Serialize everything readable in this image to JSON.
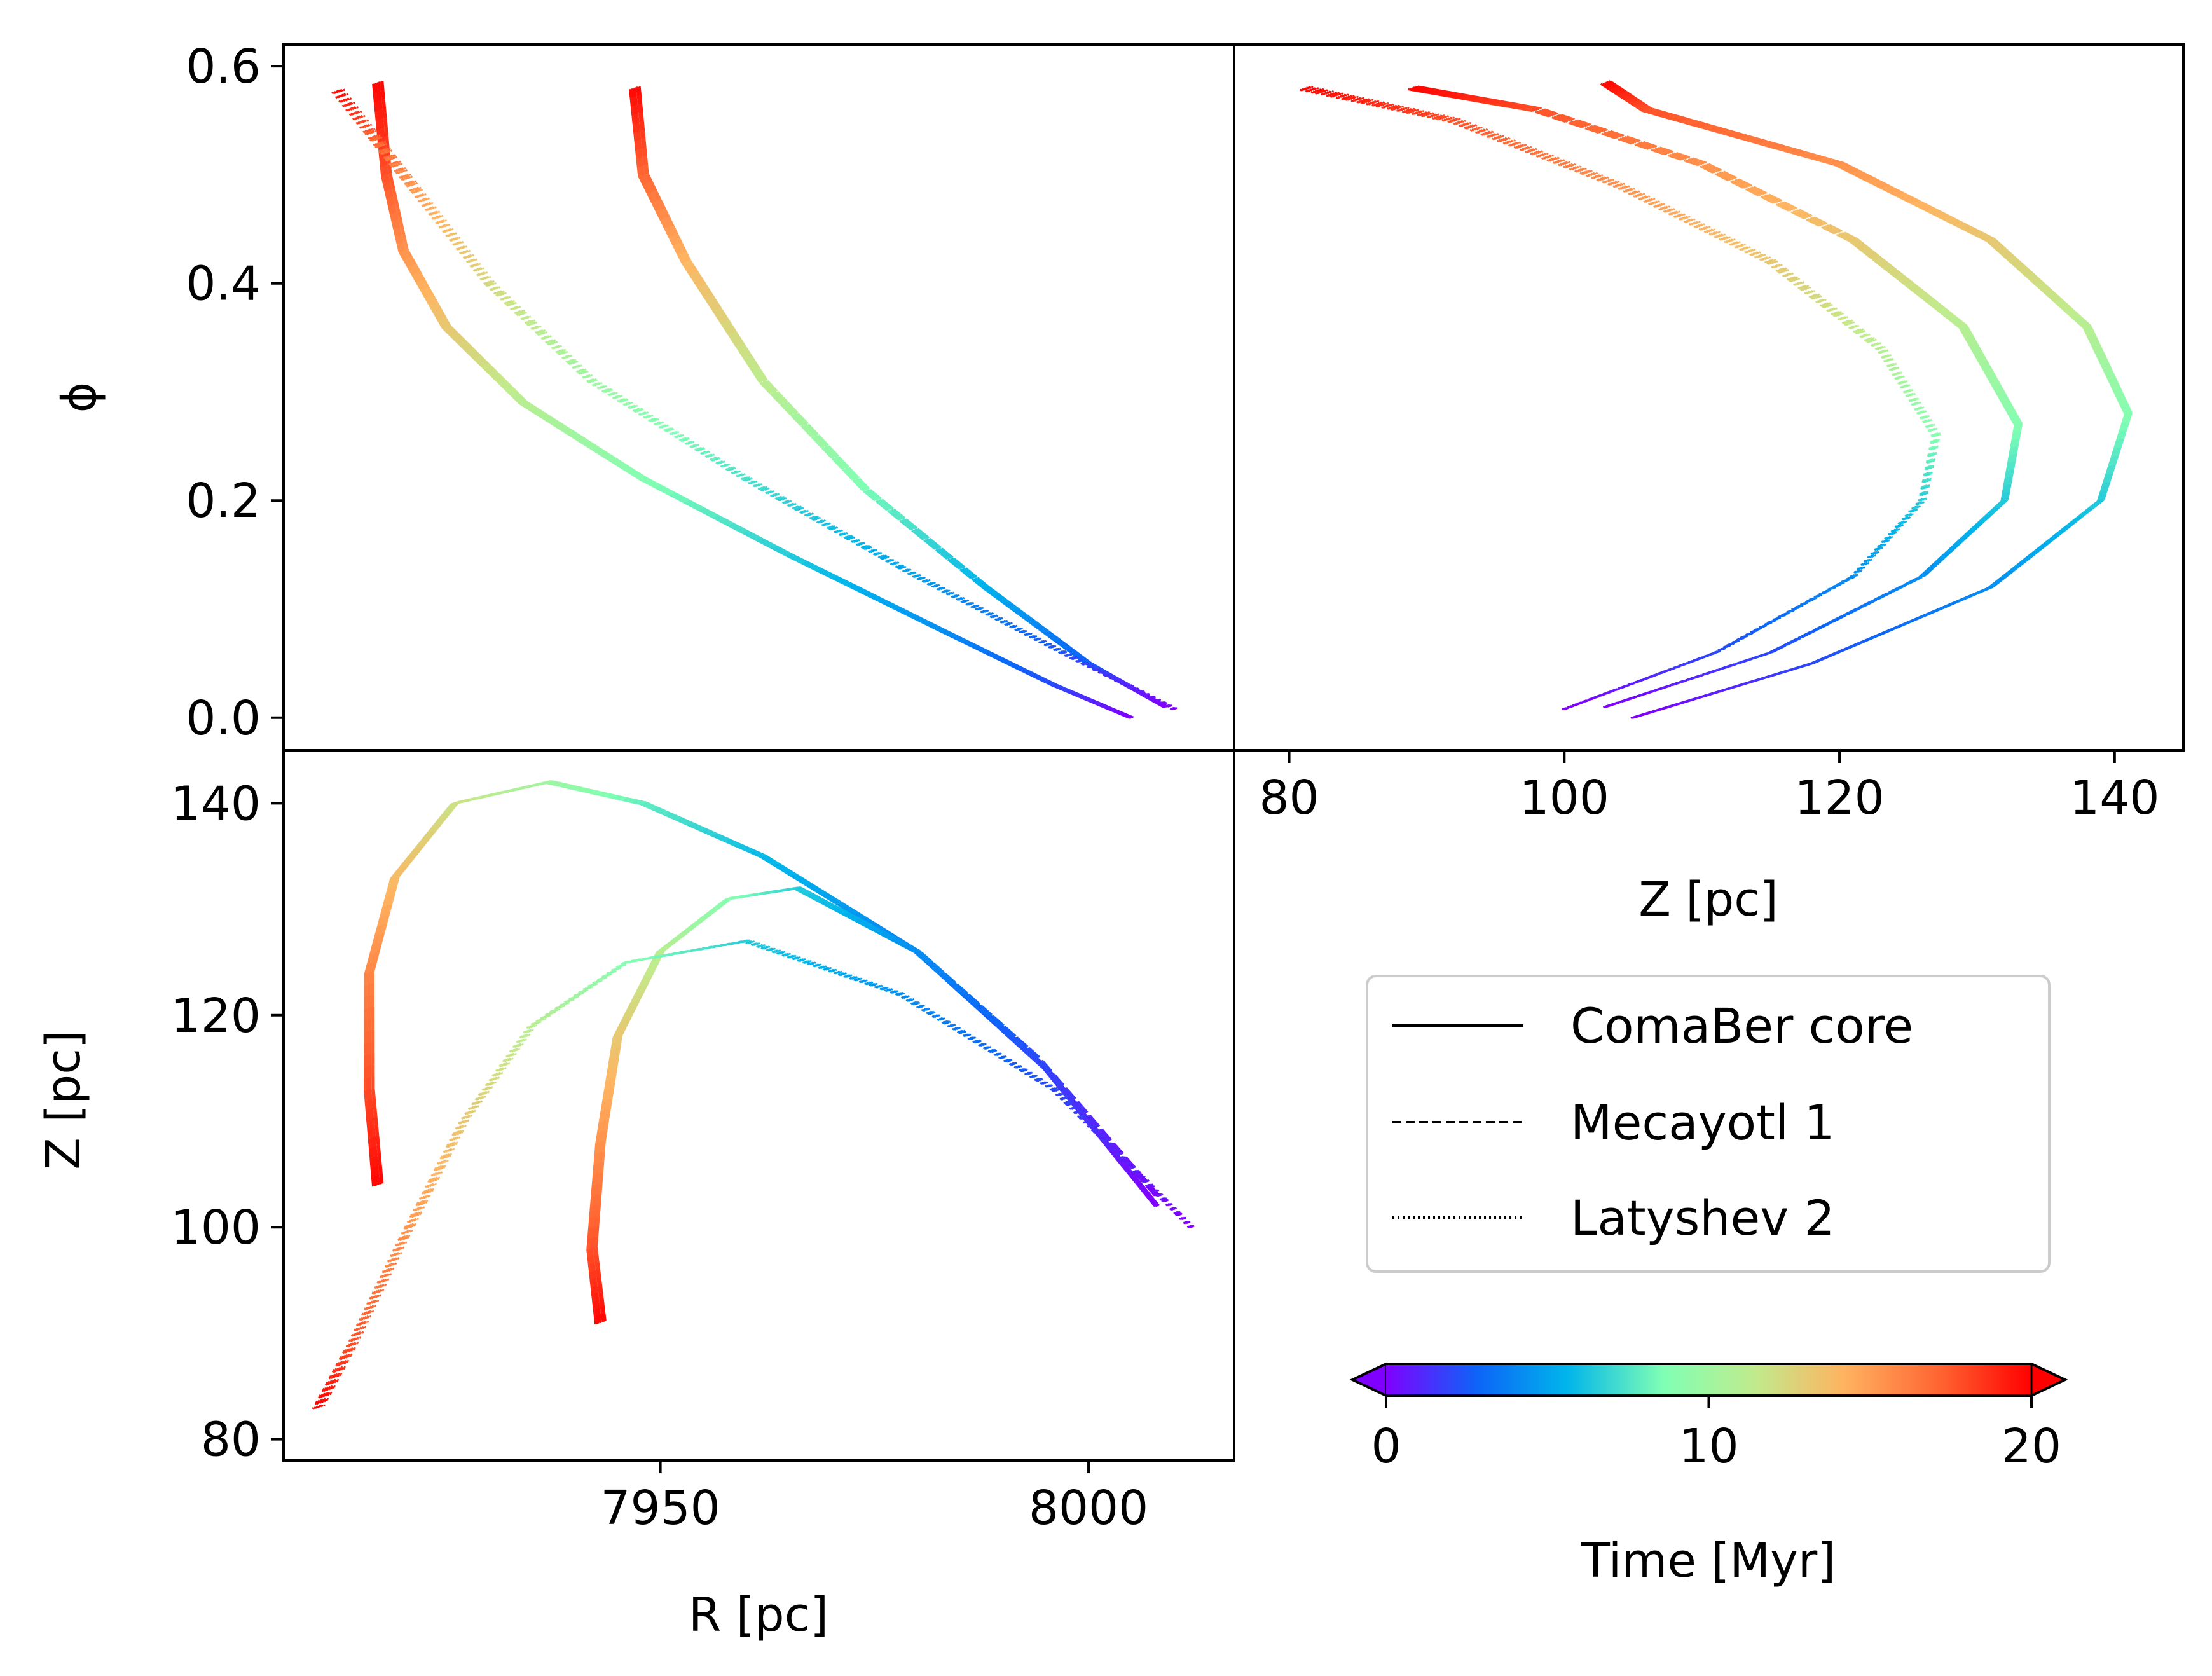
{
  "chart_data": [
    {
      "id": "phi-vs-R",
      "type": "line",
      "panel": "top-left",
      "xlabel": "",
      "ylabel": "ϕ",
      "xlim": [
        7906,
        8017
      ],
      "ylim": [
        -0.03,
        0.62
      ],
      "yticks": [
        "0.0",
        "0.2",
        "0.4",
        "0.6"
      ],
      "ytick_values": [
        0.0,
        0.2,
        0.4,
        0.6
      ],
      "series": [
        {
          "name": "ComaBer core",
          "style": "solid",
          "points": [
            [
              8005,
              0.0
            ],
            [
              7996,
              0.03
            ],
            [
              7983,
              0.08
            ],
            [
              7965,
              0.15
            ],
            [
              7948,
              0.22
            ],
            [
              7934,
              0.29
            ],
            [
              7925,
              0.36
            ],
            [
              7920,
              0.43
            ],
            [
              7918,
              0.5
            ],
            [
              7917,
              0.585
            ]
          ]
        },
        {
          "name": "Mecayotl 1",
          "style": "dashed",
          "points": [
            [
              8009,
              0.01
            ],
            [
              8000,
              0.05
            ],
            [
              7988,
              0.12
            ],
            [
              7974,
              0.21
            ],
            [
              7962,
              0.31
            ],
            [
              7953,
              0.42
            ],
            [
              7948,
              0.5
            ],
            [
              7947,
              0.58
            ]
          ]
        },
        {
          "name": "Latyshev 2",
          "style": "dotted",
          "points": [
            [
              8010,
              0.008
            ],
            [
              7997,
              0.06
            ],
            [
              7980,
              0.13
            ],
            [
              7960,
              0.22
            ],
            [
              7942,
              0.31
            ],
            [
              7930,
              0.4
            ],
            [
              7922,
              0.48
            ],
            [
              7916,
              0.54
            ],
            [
              7912,
              0.58
            ]
          ]
        }
      ]
    },
    {
      "id": "phi-vs-Z",
      "type": "line",
      "panel": "top-right",
      "xlabel": "Z [pc]",
      "ylabel": "",
      "xlim": [
        76,
        145
      ],
      "ylim": [
        -0.03,
        0.62
      ],
      "xticks": [
        "80",
        "100",
        "120",
        "140"
      ],
      "xtick_values": [
        80,
        100,
        120,
        140
      ],
      "series": [
        {
          "name": "ComaBer core",
          "style": "solid",
          "points": [
            [
              105,
              0.0
            ],
            [
              118,
              0.05
            ],
            [
              131,
              0.12
            ],
            [
              139,
              0.2
            ],
            [
              141,
              0.28
            ],
            [
              138,
              0.36
            ],
            [
              131,
              0.44
            ],
            [
              120,
              0.51
            ],
            [
              106,
              0.56
            ],
            [
              103,
              0.585
            ]
          ]
        },
        {
          "name": "Mecayotl 1",
          "style": "dashed",
          "points": [
            [
              103,
              0.01
            ],
            [
              115,
              0.06
            ],
            [
              126,
              0.13
            ],
            [
              132,
              0.2
            ],
            [
              133,
              0.27
            ],
            [
              129,
              0.36
            ],
            [
              121,
              0.44
            ],
            [
              110,
              0.51
            ],
            [
              98,
              0.56
            ],
            [
              89,
              0.58
            ]
          ]
        },
        {
          "name": "Latyshev 2",
          "style": "dotted",
          "points": [
            [
              100,
              0.008
            ],
            [
              111,
              0.06
            ],
            [
              121,
              0.13
            ],
            [
              126,
              0.2
            ],
            [
              127,
              0.26
            ],
            [
              123,
              0.34
            ],
            [
              115,
              0.42
            ],
            [
              104,
              0.49
            ],
            [
              92,
              0.55
            ],
            [
              81,
              0.58
            ]
          ]
        }
      ]
    },
    {
      "id": "Z-vs-R",
      "type": "line",
      "panel": "bottom-left",
      "xlabel": "R [pc]",
      "ylabel": "Z [pc]",
      "xlim": [
        7906,
        8017
      ],
      "ylim": [
        78,
        145
      ],
      "xticks": [
        "7950",
        "8000"
      ],
      "xtick_values": [
        7950,
        8000
      ],
      "yticks": [
        "80",
        "100",
        "120",
        "140"
      ],
      "ytick_values": [
        80,
        100,
        120,
        140
      ],
      "series": [
        {
          "name": "ComaBer core",
          "style": "solid",
          "points": [
            [
              8008,
              102
            ],
            [
              7995,
              115
            ],
            [
              7980,
              126
            ],
            [
              7962,
              135
            ],
            [
              7948,
              140
            ],
            [
              7937,
              142
            ],
            [
              7926,
              140
            ],
            [
              7919,
              133
            ],
            [
              7916,
              124
            ],
            [
              7916,
              113
            ],
            [
              7917,
              104
            ]
          ]
        },
        {
          "name": "Mecayotl 1",
          "style": "dashed",
          "points": [
            [
              8008,
              103
            ],
            [
              7994,
              116
            ],
            [
              7980,
              126
            ],
            [
              7966,
              132
            ],
            [
              7958,
              131
            ],
            [
              7950,
              126
            ],
            [
              7945,
              118
            ],
            [
              7943,
              108
            ],
            [
              7942,
              98
            ],
            [
              7943,
              91
            ]
          ]
        },
        {
          "name": "Latyshev 2",
          "style": "dotted",
          "points": [
            [
              8012,
              100
            ],
            [
              7996,
              113
            ],
            [
              7978,
              122
            ],
            [
              7960,
              127
            ],
            [
              7946,
              125
            ],
            [
              7935,
              119
            ],
            [
              7927,
              110
            ],
            [
              7920,
              99
            ],
            [
              7914,
              89
            ],
            [
              7910,
              83
            ]
          ]
        }
      ]
    }
  ],
  "legend": {
    "entries": [
      {
        "label": "ComaBer core",
        "style": "solid"
      },
      {
        "label": "Mecayotl 1",
        "style": "dashed"
      },
      {
        "label": "Latyshev 2",
        "style": "dotted"
      }
    ]
  },
  "colorbar": {
    "label": "Time [Myr]",
    "colormap": "rainbow",
    "range": [
      0,
      20
    ],
    "ticks": [
      "0",
      "10",
      "20"
    ],
    "tick_values": [
      0,
      10,
      20
    ],
    "extend": "both",
    "colors": [
      "#8000ff",
      "#0d63f8",
      "#00b5eb",
      "#80ffb4",
      "#c0eb8d",
      "#ffb360",
      "#ff6331",
      "#ff0000"
    ]
  }
}
